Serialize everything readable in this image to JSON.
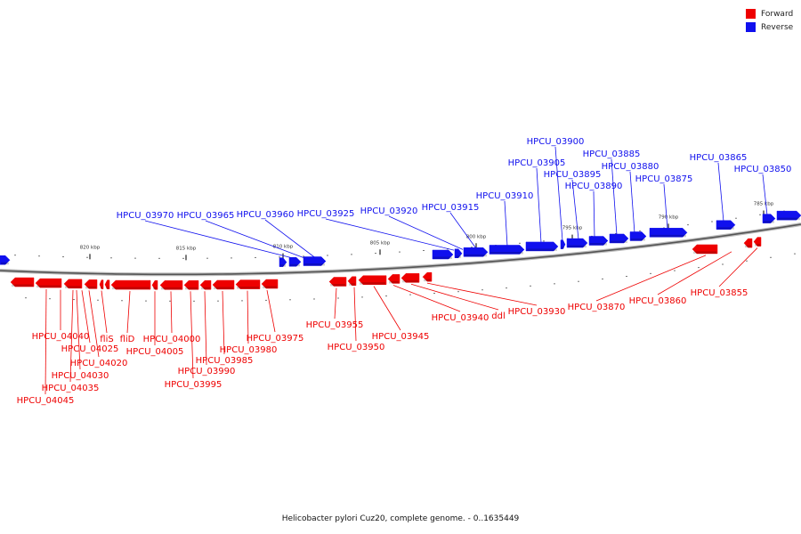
{
  "legend": {
    "forward": {
      "label": "Forward",
      "color": "#ee0000"
    },
    "reverse": {
      "label": "Reverse",
      "color": "#1010ee"
    }
  },
  "caption": "Helicobacter pylori Cuz20, complete genome. - 0..1635449",
  "ticks": [
    "820 kbp",
    "815 kbp",
    "810 kbp",
    "805 kbp",
    "800 kbp",
    "795 kbp",
    "790 kbp",
    "785 kbp"
  ],
  "reverse_labels": [
    "HPCU_03970",
    "HPCU_03965",
    "HPCU_03960",
    "HPCU_03925",
    "HPCU_03920",
    "HPCU_03915",
    "HPCU_03910",
    "HPCU_03905",
    "HPCU_03900",
    "HPCU_03895",
    "HPCU_03890",
    "HPCU_03885",
    "HPCU_03880",
    "HPCU_03875",
    "HPCU_03865",
    "HPCU_03850"
  ],
  "forward_labels": [
    "HPCU_04040",
    "HPCU_04025",
    "fliS",
    "fliD",
    "HPCU_04020",
    "HPCU_04030",
    "HPCU_04035",
    "HPCU_04045",
    "HPCU_04000",
    "HPCU_04005",
    "HPCU_03995",
    "HPCU_03990",
    "HPCU_03985",
    "HPCU_03980",
    "HPCU_03975",
    "HPCU_03955",
    "HPCU_03950",
    "HPCU_03945",
    "HPCU_03940",
    "ddl",
    "HPCU_03930",
    "HPCU_03870",
    "HPCU_03860",
    "HPCU_03855"
  ]
}
